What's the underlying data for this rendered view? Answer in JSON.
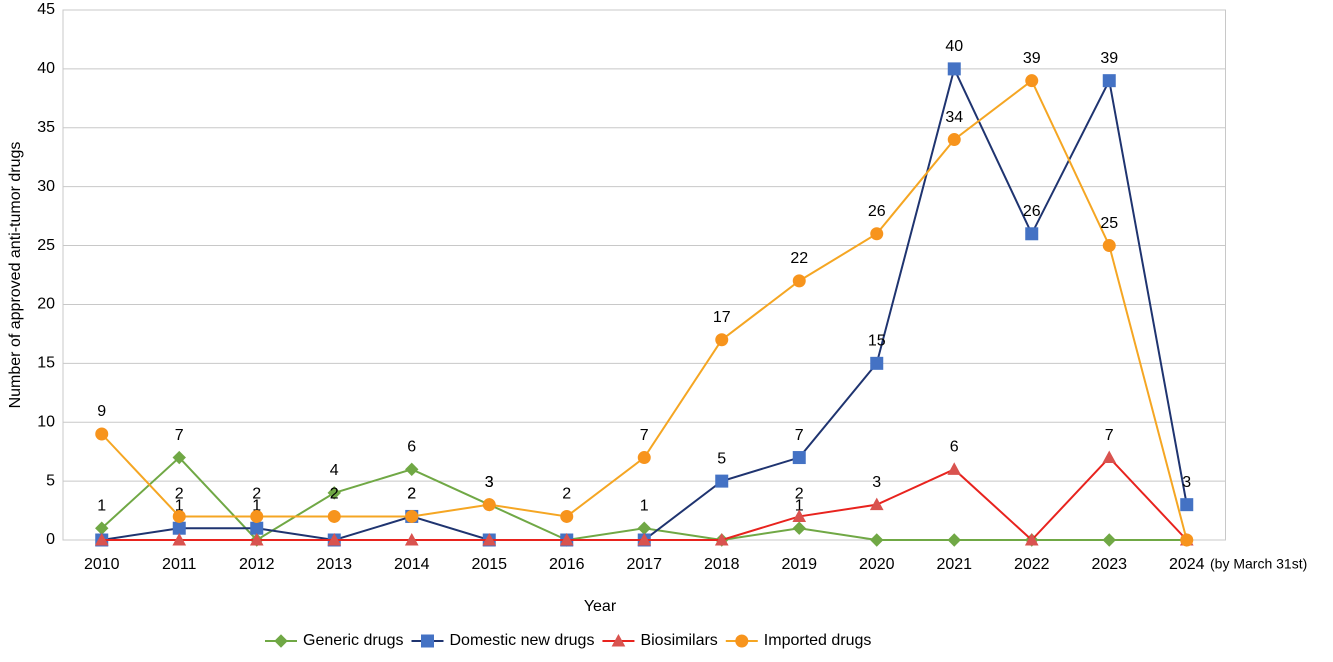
{
  "chart_data": {
    "type": "line",
    "x_label": "Year",
    "y_label": "Number of approved anti-tumor drugs",
    "annotation": "(by March 31st)",
    "categories": [
      "2010",
      "2011",
      "2012",
      "2013",
      "2014",
      "2015",
      "2016",
      "2017",
      "2018",
      "2019",
      "2020",
      "2021",
      "2022",
      "2023",
      "2024"
    ],
    "series": [
      {
        "name": "Generic drugs",
        "color": "#70a845",
        "marker": "diamond",
        "values": [
          1,
          7,
          0,
          4,
          6,
          3,
          0,
          1,
          0,
          1,
          0,
          0,
          0,
          0,
          0
        ]
      },
      {
        "name": "Domestic new drugs",
        "color": "#1f3470",
        "marker_color": "#4472c4",
        "marker": "square",
        "values": [
          0,
          1,
          1,
          0,
          2,
          0,
          0,
          0,
          5,
          7,
          15,
          40,
          26,
          39,
          3
        ]
      },
      {
        "name": "Biosimilars",
        "color": "#e8231e",
        "marker_color": "#d9534f",
        "marker": "triangle",
        "values": [
          0,
          0,
          0,
          0,
          0,
          0,
          0,
          0,
          0,
          2,
          3,
          6,
          0,
          7,
          0
        ]
      },
      {
        "name": "Imported drugs",
        "color": "#f5a623",
        "marker_color": "#f7941d",
        "marker": "circle",
        "values": [
          9,
          2,
          2,
          2,
          2,
          3,
          2,
          7,
          17,
          22,
          26,
          34,
          39,
          25,
          0
        ]
      }
    ],
    "ylim": [
      0,
      45
    ],
    "yticks": [
      0,
      5,
      10,
      15,
      20,
      25,
      30,
      35,
      40,
      45
    ],
    "grid": true,
    "legend": "bottom"
  }
}
